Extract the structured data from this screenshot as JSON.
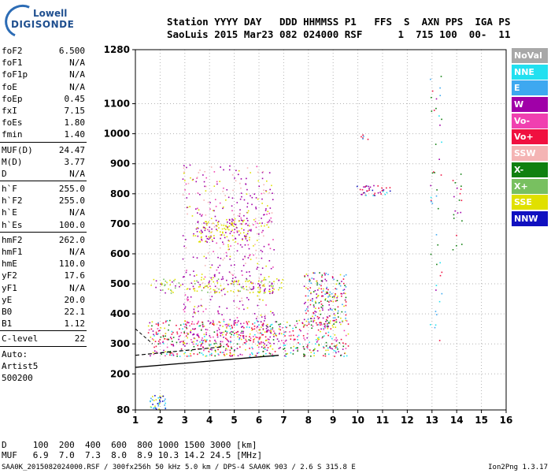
{
  "logo": {
    "line1": "Lowell",
    "line2": "DIGISONDE"
  },
  "header": {
    "row1": "Station YYYY DAY   DDD HHMMSS P1   FFS  S  AXN PPS  IGA PS",
    "row2": "SaoLuis 2015 Mar23 082 024000 RSF      1  715 100  00-  11"
  },
  "params": {
    "group1": [
      {
        "k": "foF2",
        "v": "6.500"
      },
      {
        "k": "foF1",
        "v": "N/A"
      },
      {
        "k": "foF1p",
        "v": "N/A"
      },
      {
        "k": "foE",
        "v": "N/A"
      },
      {
        "k": "foEp",
        "v": "0.45"
      },
      {
        "k": "fxI",
        "v": "7.15"
      },
      {
        "k": "foEs",
        "v": "1.80"
      },
      {
        "k": "fmin",
        "v": "1.40"
      }
    ],
    "group2": [
      {
        "k": "MUF(D)",
        "v": "24.47"
      },
      {
        "k": "M(D)",
        "v": "3.77"
      },
      {
        "k": "D",
        "v": "N/A"
      }
    ],
    "group3": [
      {
        "k": "h`F",
        "v": "255.0"
      },
      {
        "k": "h`F2",
        "v": "255.0"
      },
      {
        "k": "h`E",
        "v": "N/A"
      },
      {
        "k": "h`Es",
        "v": "100.0"
      }
    ],
    "group4": [
      {
        "k": "hmF2",
        "v": "262.0"
      },
      {
        "k": "hmF1",
        "v": "N/A"
      },
      {
        "k": "hmE",
        "v": "110.0"
      },
      {
        "k": "yF2",
        "v": "17.6"
      },
      {
        "k": "yF1",
        "v": "N/A"
      },
      {
        "k": "yE",
        "v": "20.0"
      },
      {
        "k": "B0",
        "v": "22.1"
      },
      {
        "k": "B1",
        "v": "1.12"
      }
    ],
    "group5": [
      {
        "k": "C-level",
        "v": "22"
      }
    ],
    "autotext": [
      "Auto:",
      "Artist5",
      "500200"
    ]
  },
  "legend": [
    {
      "label": "NoVal",
      "color": "#a8a8a8"
    },
    {
      "label": "NNE",
      "color": "#22e0f0"
    },
    {
      "label": "E",
      "color": "#3ea8f0"
    },
    {
      "label": "W",
      "color": "#a000a8"
    },
    {
      "label": "Vo-",
      "color": "#f040b0"
    },
    {
      "label": "Vo+",
      "color": "#f01040"
    },
    {
      "label": "SSW",
      "color": "#f4b4b4"
    },
    {
      "label": "X-",
      "color": "#108010"
    },
    {
      "label": "X+",
      "color": "#78c060"
    },
    {
      "label": "SSE",
      "color": "#e0e000"
    },
    {
      "label": "NNW",
      "color": "#1010c0"
    }
  ],
  "bottom": {
    "row1": "D     100  200  400  600  800 1000 1500 3000 [km]",
    "row2": "MUF   6.9  7.0  7.3  8.0  8.9 10.3 14.2 24.5 [MHz]",
    "footer": "SAA0K_2015082024000.RSF / 300fx256h 50 kHz 5.0 km / DPS-4 SAA0K 903 / 2.6 S 315.8 E",
    "version": "Ion2Png 1.3.17"
  },
  "chart_data": {
    "type": "scatter",
    "xlim": [
      1,
      16
    ],
    "ylim": [
      80,
      1280
    ],
    "xticks": [
      "1",
      "2",
      "3",
      "4",
      "5",
      "6",
      "7",
      "8",
      "9",
      "10",
      "11",
      "12",
      "13",
      "14",
      "15",
      "16"
    ],
    "yticks": [
      "80",
      "200",
      "300",
      "400",
      "500",
      "600",
      "700",
      "800",
      "900",
      "1000",
      "1100",
      "1280"
    ],
    "grid": true,
    "legend_placement": "right",
    "ordinary_trace": {
      "f_mhz": [
        1.0,
        6.8
      ],
      "h_km": [
        222,
        262
      ]
    },
    "extraordinary_trace": {
      "f_mhz": [
        1.0,
        4.5
      ],
      "h_km": [
        262,
        290
      ]
    }
  }
}
